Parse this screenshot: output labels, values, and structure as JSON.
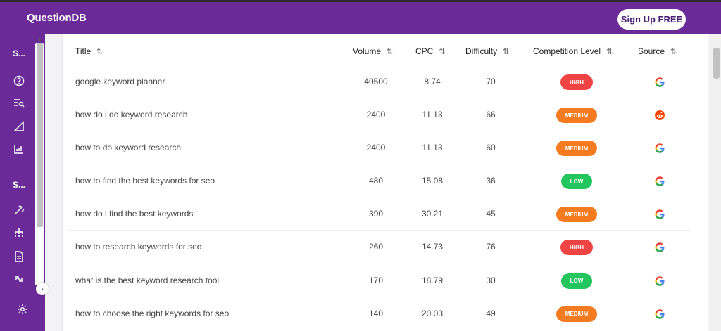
{
  "app": {
    "title": "QuestionDB",
    "signup_label": "Sign Up FREE"
  },
  "sidebar": {
    "section1": "S...",
    "section2": "S...",
    "icons": [
      "help-icon",
      "list-search-icon",
      "triangle-ruler-icon",
      "chart-icon",
      "sparkle-icon",
      "hierarchy-icon",
      "document-icon",
      "transfer-icon",
      "gear-icon"
    ]
  },
  "table": {
    "headers": [
      "Title",
      "Volume",
      "CPC",
      "Difficulty",
      "Competition Level",
      "Source"
    ],
    "sort_icon": "⇅",
    "rows": [
      {
        "title": "google keyword planner",
        "volume": "40500",
        "cpc": "8.74",
        "difficulty": "70",
        "level": "HIGH",
        "source": "google"
      },
      {
        "title": "how do i do keyword research",
        "volume": "2400",
        "cpc": "11.13",
        "difficulty": "66",
        "level": "MEDIUM",
        "source": "reddit"
      },
      {
        "title": "how to do keyword research",
        "volume": "2400",
        "cpc": "11.13",
        "difficulty": "60",
        "level": "MEDIUM",
        "source": "google"
      },
      {
        "title": "how to find the best keywords for seo",
        "volume": "480",
        "cpc": "15.08",
        "difficulty": "36",
        "level": "LOW",
        "source": "google"
      },
      {
        "title": "how do i find the best keywords",
        "volume": "390",
        "cpc": "30.21",
        "difficulty": "45",
        "level": "MEDIUM",
        "source": "google"
      },
      {
        "title": "how to research keywords for seo",
        "volume": "260",
        "cpc": "14.73",
        "difficulty": "76",
        "level": "HIGH",
        "source": "google"
      },
      {
        "title": "what is the best keyword research tool",
        "volume": "170",
        "cpc": "18.79",
        "difficulty": "30",
        "level": "LOW",
        "source": "google"
      },
      {
        "title": "how to choose the right keywords for seo",
        "volume": "140",
        "cpc": "20.03",
        "difficulty": "49",
        "level": "MEDIUM",
        "source": "google"
      }
    ]
  },
  "colors": {
    "brand": "#6a2a98",
    "high": "#ef4444",
    "medium": "#f47b20",
    "low": "#22c55e",
    "reddit": "#ff4500"
  }
}
